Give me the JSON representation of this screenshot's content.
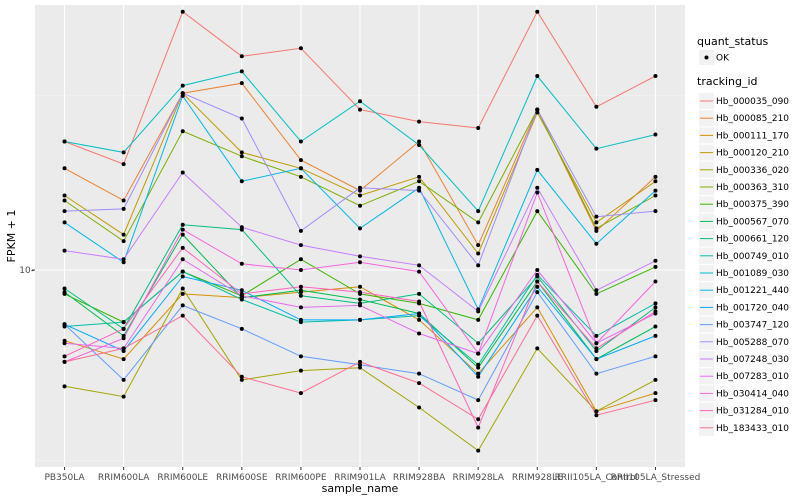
{
  "chart_data": {
    "type": "line",
    "title": "",
    "xlabel": "sample_name",
    "ylabel": "FPKM + 1",
    "y_scale": "log10",
    "y_ticks": [
      {
        "value": 10,
        "label": "10-"
      }
    ],
    "grid": true,
    "legend_position": "right",
    "categories": [
      "PB350LA",
      "RRIM600LA",
      "RRIM600LE",
      "RRIM600SE",
      "RRIM600PE",
      "RRIM901LA",
      "RRIM928BA",
      "RRIM928LA",
      "RRIM928LE",
      "RRII105LA_Control",
      "RRII105LA_Stressed"
    ],
    "tick_labels": [
      "PB350LA",
      "RRIM600LA",
      "RRIM600LE",
      "RRIM600SE",
      "RRIM600PE",
      "RRIM901LA",
      "RRIM928BA",
      "RRIM928LA",
      "RRIM928LE",
      "RRII105LA_Control",
      "RRII105LA_Stressed"
    ],
    "legend_shape": {
      "title": "quant_status",
      "entries": [
        "OK"
      ]
    },
    "legend_color_title": "tracking_id",
    "series": [
      {
        "name": "Hb_000035_090",
        "color": "#F8766D",
        "values": [
          22.5,
          19.5,
          51,
          38.5,
          40.5,
          27.5,
          25.5,
          24.5,
          51,
          28,
          34
        ]
      },
      {
        "name": "Hb_000085_210",
        "color": "#EA8331",
        "values": [
          19,
          15.5,
          30.5,
          32.5,
          20,
          16.5,
          22.5,
          11.7,
          27.5,
          12.8,
          18
        ]
      },
      {
        "name": "Hb_000111_170",
        "color": "#D89000",
        "values": [
          6.4,
          5.7,
          8.6,
          8.4,
          8.7,
          9.0,
          7.3,
          5.2,
          7.9,
          4.1,
          4.6
        ]
      },
      {
        "name": "Hb_000120_210",
        "color": "#C09B00",
        "values": [
          16,
          12.5,
          30.5,
          21,
          19,
          16,
          18,
          11.1,
          27,
          13.5,
          17.5
        ]
      },
      {
        "name": "Hb_000336_020",
        "color": "#A3A500",
        "values": [
          4.8,
          4.5,
          8.9,
          5.0,
          5.3,
          5.4,
          4.2,
          3.2,
          6.1,
          4.1,
          5.0
        ]
      },
      {
        "name": "Hb_000363_310",
        "color": "#7CAE00",
        "values": [
          15.5,
          12,
          24,
          20.5,
          18,
          15,
          17.5,
          13.5,
          27.5,
          13,
          16
        ]
      },
      {
        "name": "Hb_000375_390",
        "color": "#39B600",
        "values": [
          8.6,
          7.2,
          9.9,
          8.5,
          10.7,
          8.6,
          8.1,
          7.3,
          14.5,
          8.6,
          10.2
        ]
      },
      {
        "name": "Hb_000567_070",
        "color": "#00BB4E",
        "values": [
          8.7,
          6.6,
          12.5,
          8.4,
          8.8,
          8.3,
          7.6,
          5.4,
          9.3,
          5.7,
          7.0
        ]
      },
      {
        "name": "Hb_000661_120",
        "color": "#00BF7D",
        "values": [
          8.9,
          6.9,
          13.3,
          12.9,
          8.5,
          8.1,
          8.6,
          6.3,
          9.6,
          6.0,
          7.9
        ]
      },
      {
        "name": "Hb_000749_010",
        "color": "#00C1A3",
        "values": [
          7.0,
          7.2,
          9.9,
          8.3,
          7.2,
          7.3,
          7.5,
          5.5,
          9.7,
          6.6,
          8.1
        ]
      },
      {
        "name": "Hb_001089_030",
        "color": "#00BFC4",
        "values": [
          22.5,
          21,
          32,
          35,
          22.5,
          29,
          22,
          14.5,
          34,
          21.5,
          23.5
        ]
      },
      {
        "name": "Hb_001221_440",
        "color": "#00B7E8",
        "values": [
          13.5,
          10.5,
          30,
          17.5,
          19,
          13,
          16.8,
          7.8,
          18.8,
          11.8,
          16.5
        ]
      },
      {
        "name": "Hb_001720_040",
        "color": "#00A9FF",
        "values": [
          7.1,
          6.0,
          9.6,
          8.8,
          7.3,
          7.3,
          7.6,
          5.1,
          9.0,
          5.7,
          6.6
        ]
      },
      {
        "name": "Hb_003747_120",
        "color": "#619CFF",
        "values": [
          7.1,
          5.0,
          8.0,
          6.9,
          5.8,
          5.5,
          5.2,
          4.4,
          8.7,
          5.2,
          5.8
        ]
      },
      {
        "name": "Hb_005288_070",
        "color": "#9F8CFF",
        "values": [
          14.5,
          14.7,
          30.5,
          26,
          12.8,
          16.8,
          16.5,
          10.3,
          27.5,
          14,
          14.5
        ]
      },
      {
        "name": "Hb_007248_030",
        "color": "#C77CFF",
        "values": [
          11.3,
          10.7,
          18.5,
          13.1,
          11.7,
          10.9,
          10.3,
          7.7,
          16.8,
          8.8,
          10.6
        ]
      },
      {
        "name": "Hb_007283_010",
        "color": "#E76BF3",
        "values": [
          6.3,
          6.1,
          10.7,
          8.5,
          7.9,
          8.0,
          6.7,
          5.9,
          10.0,
          6.3,
          7.6
        ]
      },
      {
        "name": "Hb_030414_040",
        "color": "#F763E0",
        "values": [
          5.6,
          6.5,
          12.9,
          10.4,
          10.0,
          10.5,
          9.9,
          5.9,
          16.3,
          6.3,
          9.3
        ]
      },
      {
        "name": "Hb_031284_010",
        "color": "#FF62BC",
        "values": [
          5.8,
          6.9,
          11.5,
          8.6,
          9.0,
          8.7,
          8.2,
          3.7,
          9.3,
          6.1,
          7.7
        ]
      },
      {
        "name": "Hb_183433_010",
        "color": "#FF6C91",
        "values": [
          5.6,
          6.1,
          7.5,
          5.1,
          4.6,
          5.6,
          4.9,
          3.9,
          7.5,
          4.0,
          4.4
        ]
      }
    ]
  }
}
